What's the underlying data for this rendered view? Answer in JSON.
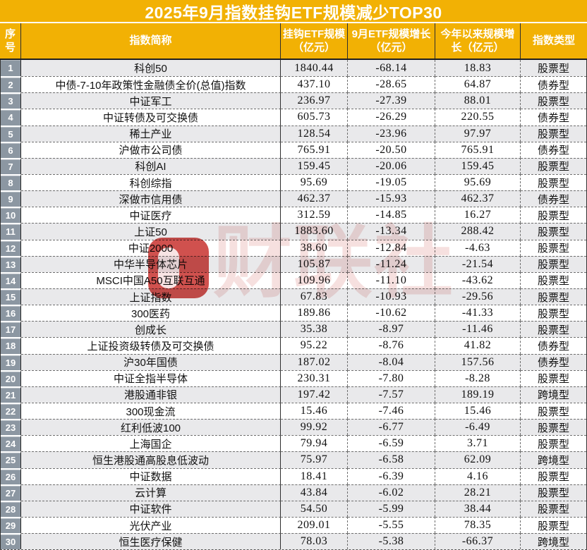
{
  "colors": {
    "header_bg": "#F2B104",
    "rank_bg": "#8C97A2",
    "stripe_bg": "#E9E9EB",
    "wm_red": "#C62B28"
  },
  "watermark": {
    "text": "财联社"
  },
  "chart_data": {
    "type": "table",
    "title": "2025年9月指数挂钩ETF规模减少TOP30",
    "columns": [
      "序号",
      "指数简称",
      "挂钩ETF规模（亿元）",
      "9月ETF规模增长（亿元）",
      "今年以来规模增长（亿元）",
      "指数类型"
    ],
    "rows": [
      {
        "rank": "1",
        "name": "科创50",
        "scale": "1840.44",
        "m9": "-68.14",
        "ytd": "18.83",
        "type": "股票型",
        "shaded": true
      },
      {
        "rank": "2",
        "name": "中债-7-10年政策性金融债全价(总值)指数",
        "scale": "437.10",
        "m9": "-28.65",
        "ytd": "64.87",
        "type": "债券型",
        "shaded": false
      },
      {
        "rank": "3",
        "name": "中证军工",
        "scale": "236.97",
        "m9": "-27.39",
        "ytd": "88.01",
        "type": "股票型",
        "shaded": true
      },
      {
        "rank": "4",
        "name": "中证转债及可交换债",
        "scale": "605.73",
        "m9": "-26.29",
        "ytd": "220.55",
        "type": "债券型",
        "shaded": false
      },
      {
        "rank": "5",
        "name": "稀土产业",
        "scale": "128.54",
        "m9": "-23.96",
        "ytd": "97.97",
        "type": "股票型",
        "shaded": true
      },
      {
        "rank": "6",
        "name": "沪做市公司债",
        "scale": "765.91",
        "m9": "-20.50",
        "ytd": "765.91",
        "type": "债券型",
        "shaded": false
      },
      {
        "rank": "7",
        "name": "科创AI",
        "scale": "159.45",
        "m9": "-20.06",
        "ytd": "159.45",
        "type": "股票型",
        "shaded": true
      },
      {
        "rank": "8",
        "name": "科创综指",
        "scale": "95.69",
        "m9": "-19.05",
        "ytd": "95.69",
        "type": "股票型",
        "shaded": false
      },
      {
        "rank": "9",
        "name": "深做市信用债",
        "scale": "462.37",
        "m9": "-15.93",
        "ytd": "462.37",
        "type": "债券型",
        "shaded": true
      },
      {
        "rank": "10",
        "name": "中证医疗",
        "scale": "312.59",
        "m9": "-14.85",
        "ytd": "16.27",
        "type": "股票型",
        "shaded": false
      },
      {
        "rank": "11",
        "name": "上证50",
        "scale": "1883.60",
        "m9": "-13.34",
        "ytd": "288.42",
        "type": "股票型",
        "shaded": true
      },
      {
        "rank": "12",
        "name": "中证2000",
        "scale": "38.60",
        "m9": "-12.84",
        "ytd": "-4.63",
        "type": "股票型",
        "shaded": false
      },
      {
        "rank": "13",
        "name": "中华半导体芯片",
        "scale": "105.87",
        "m9": "-11.24",
        "ytd": "-21.54",
        "type": "股票型",
        "shaded": true
      },
      {
        "rank": "14",
        "name": "MSCI中国A50互联互通",
        "scale": "109.96",
        "m9": "-11.10",
        "ytd": "-43.62",
        "type": "股票型",
        "shaded": false
      },
      {
        "rank": "15",
        "name": "上证指数",
        "scale": "67.83",
        "m9": "-10.93",
        "ytd": "-29.56",
        "type": "股票型",
        "shaded": true
      },
      {
        "rank": "16",
        "name": "300医药",
        "scale": "189.86",
        "m9": "-10.62",
        "ytd": "-41.33",
        "type": "股票型",
        "shaded": false
      },
      {
        "rank": "17",
        "name": "创成长",
        "scale": "35.38",
        "m9": "-8.97",
        "ytd": "-11.46",
        "type": "股票型",
        "shaded": true
      },
      {
        "rank": "18",
        "name": "上证投资级转债及可交换债",
        "scale": "95.22",
        "m9": "-8.76",
        "ytd": "41.82",
        "type": "债券型",
        "shaded": false
      },
      {
        "rank": "19",
        "name": "沪30年国债",
        "scale": "187.02",
        "m9": "-8.04",
        "ytd": "157.56",
        "type": "债券型",
        "shaded": true
      },
      {
        "rank": "20",
        "name": "中证全指半导体",
        "scale": "230.31",
        "m9": "-7.80",
        "ytd": "-8.28",
        "type": "股票型",
        "shaded": false
      },
      {
        "rank": "21",
        "name": "港股通非银",
        "scale": "197.42",
        "m9": "-7.57",
        "ytd": "189.19",
        "type": "跨境型",
        "shaded": true
      },
      {
        "rank": "22",
        "name": "300现金流",
        "scale": "15.46",
        "m9": "-7.46",
        "ytd": "15.46",
        "type": "股票型",
        "shaded": false
      },
      {
        "rank": "23",
        "name": "红利低波100",
        "scale": "99.92",
        "m9": "-6.77",
        "ytd": "-6.49",
        "type": "股票型",
        "shaded": true
      },
      {
        "rank": "24",
        "name": "上海国企",
        "scale": "79.94",
        "m9": "-6.59",
        "ytd": "3.71",
        "type": "股票型",
        "shaded": false
      },
      {
        "rank": "25",
        "name": "恒生港股通高股息低波动",
        "scale": "75.97",
        "m9": "-6.58",
        "ytd": "62.09",
        "type": "跨境型",
        "shaded": true
      },
      {
        "rank": "26",
        "name": "中证数据",
        "scale": "18.41",
        "m9": "-6.39",
        "ytd": "4.16",
        "type": "股票型",
        "shaded": false
      },
      {
        "rank": "27",
        "name": "云计算",
        "scale": "43.84",
        "m9": "-6.02",
        "ytd": "28.21",
        "type": "股票型",
        "shaded": true
      },
      {
        "rank": "28",
        "name": "中证软件",
        "scale": "54.50",
        "m9": "-5.99",
        "ytd": "38.44",
        "type": "股票型",
        "shaded": true
      },
      {
        "rank": "29",
        "name": "光伏产业",
        "scale": "209.01",
        "m9": "-5.55",
        "ytd": "78.35",
        "type": "股票型",
        "shaded": false
      },
      {
        "rank": "30",
        "name": "恒生医疗保健",
        "scale": "78.03",
        "m9": "-5.38",
        "ytd": "-66.37",
        "type": "跨境型",
        "shaded": true
      }
    ]
  }
}
